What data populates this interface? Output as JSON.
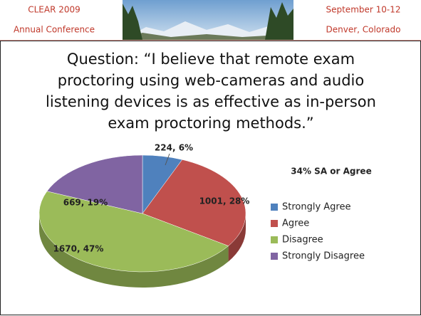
{
  "header": {
    "left": [
      "CLEAR 2009",
      "Annual Conference"
    ],
    "right": [
      "September 10-12",
      "Denver, Colorado"
    ]
  },
  "chart_data": {
    "type": "pie",
    "title": [
      "Question: “I believe that remote exam",
      "proctoring using web-cameras and audio",
      "listening devices is as effective as in-person",
      "exam proctoring methods.”"
    ],
    "annotation": "34% SA or Agree",
    "categories": [
      "Strongly Agree",
      "Agree",
      "Disagree",
      "Strongly Disagree"
    ],
    "values": [
      224,
      1001,
      1670,
      669
    ],
    "value_labels": [
      "224, 6%",
      "1001, 28%",
      "1670, 47%",
      "669, 19%"
    ],
    "colors": [
      "#4f81bd",
      "#c0504d",
      "#9bbb59",
      "#8064a2"
    ]
  }
}
